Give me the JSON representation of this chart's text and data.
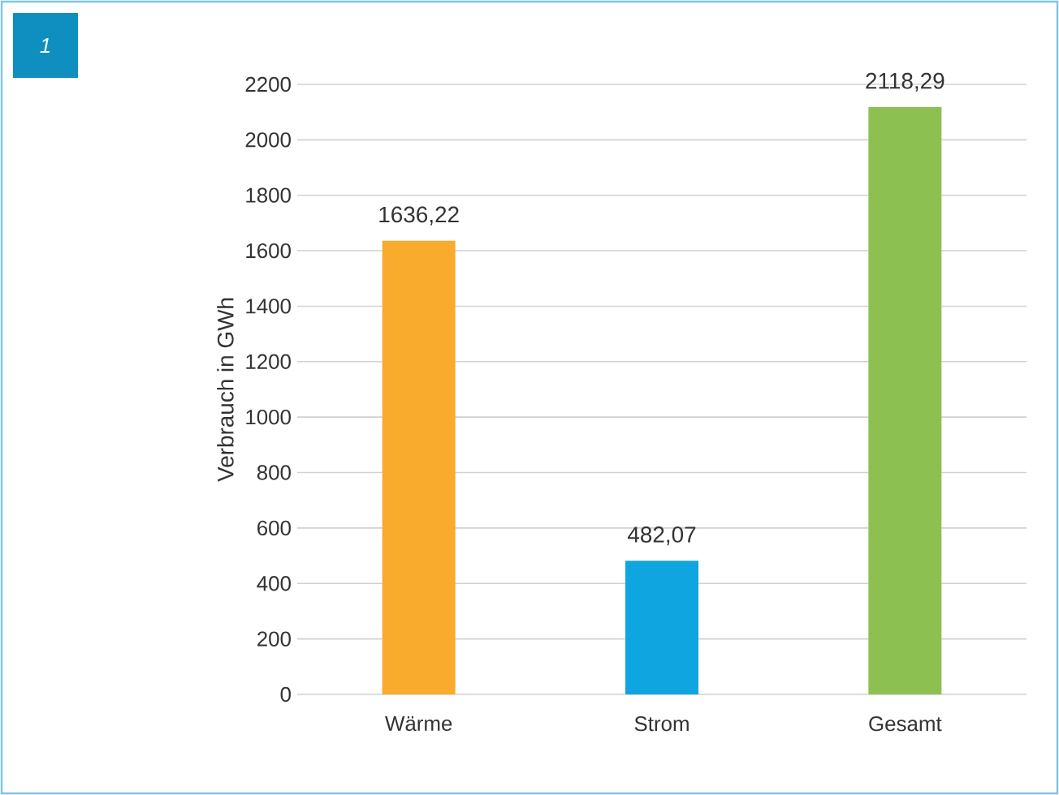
{
  "chart_data": {
    "type": "bar",
    "ylabel": "Verbrauch in GWh",
    "categories": [
      "Wärme",
      "Strom",
      "Gesamt"
    ],
    "values": [
      1636.22,
      482.07,
      2118.29
    ],
    "colors": [
      "#f9ab2d",
      "#0fa5e0",
      "#8cc152"
    ],
    "value_labels": [
      "1636,22",
      "482,07",
      "2118,29"
    ],
    "ylim": [
      0,
      2200
    ],
    "yticks": [
      0,
      200,
      400,
      600,
      800,
      1000,
      1200,
      1400,
      1600,
      1800,
      2000,
      2200
    ],
    "grid": "y",
    "annotations": [
      "1"
    ]
  }
}
